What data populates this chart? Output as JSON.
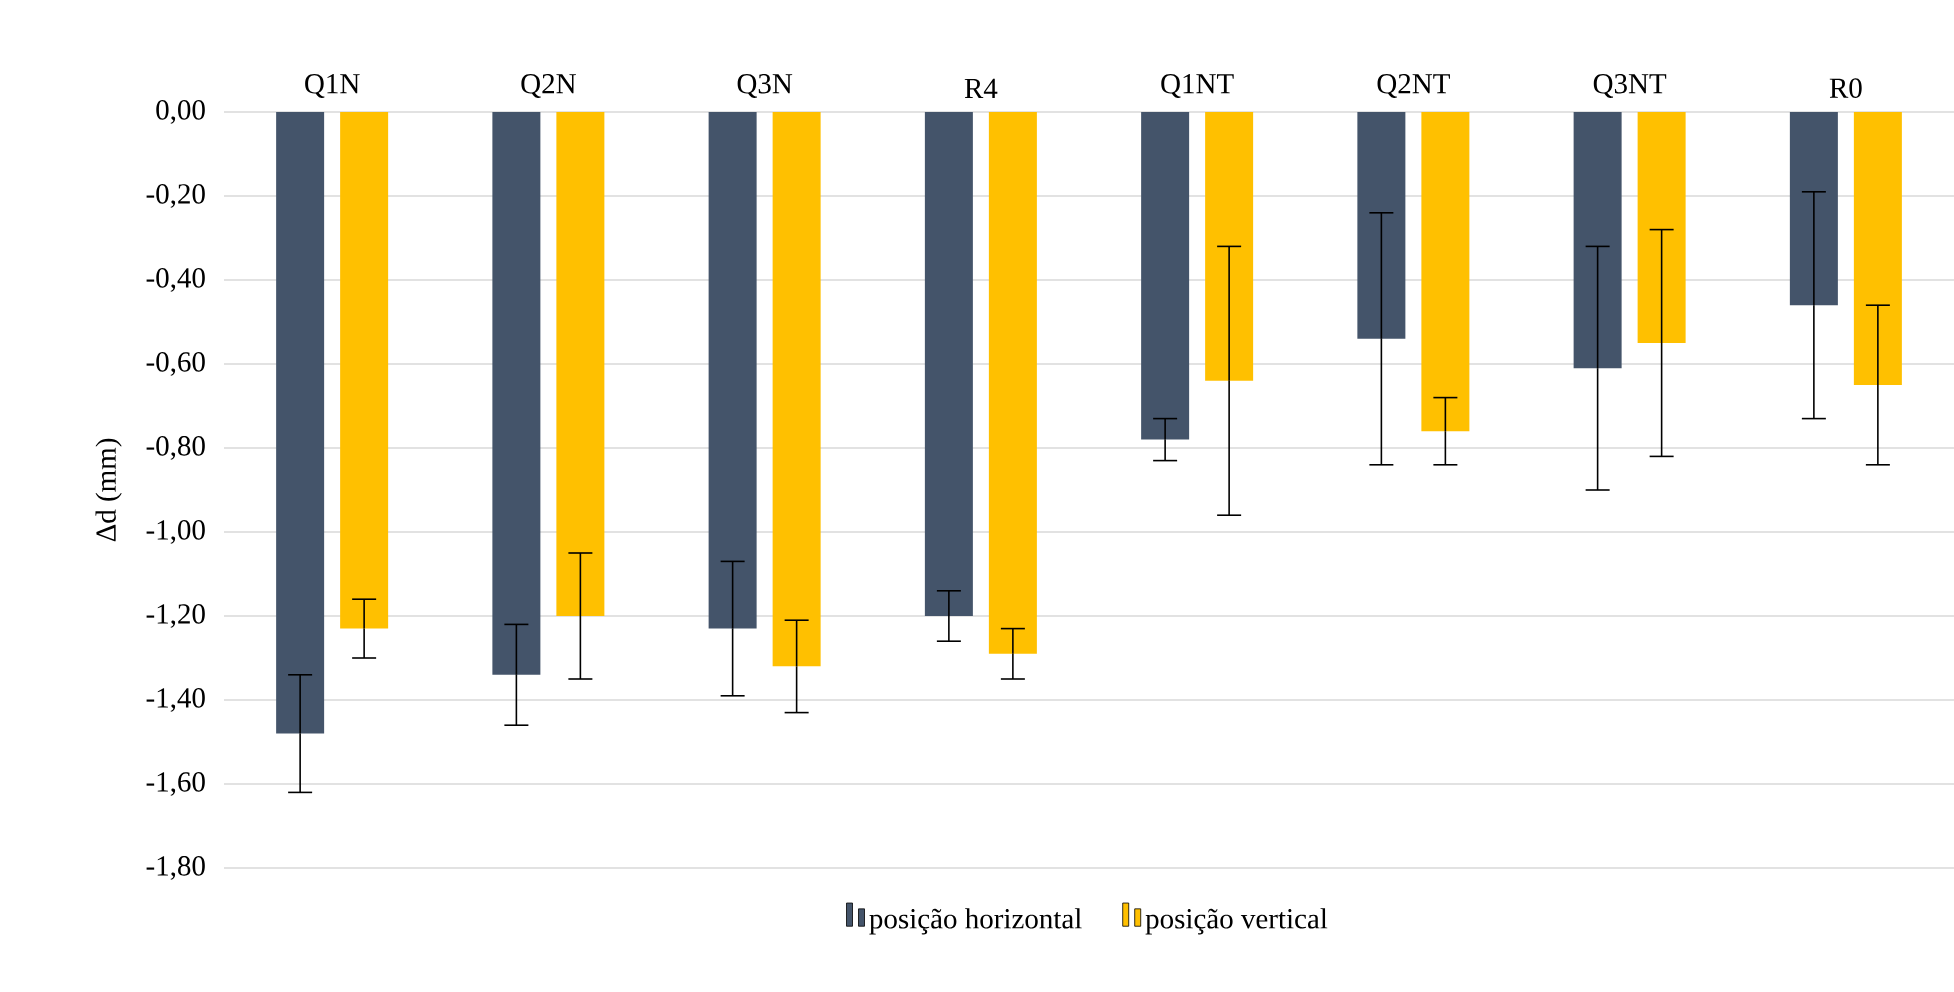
{
  "chart_data": {
    "type": "bar",
    "ylabel": "Δd (mm)",
    "categories": [
      "Q1N",
      "Q2N",
      "Q3N",
      "R4",
      "Q1NT",
      "Q2NT",
      "Q3NT",
      "R0"
    ],
    "series": [
      {
        "name": "posição horizontal",
        "color": "#44546a",
        "values": [
          -1.48,
          -1.34,
          -1.23,
          -1.2,
          -0.78,
          -0.54,
          -0.61,
          -0.46
        ],
        "errors": [
          0.14,
          0.12,
          0.16,
          0.06,
          0.05,
          0.3,
          0.29,
          0.27
        ]
      },
      {
        "name": "posição vertical",
        "color": "#ffc000",
        "values": [
          -1.23,
          -1.2,
          -1.32,
          -1.29,
          -0.64,
          -0.76,
          -0.55,
          -0.65
        ],
        "errors": [
          0.07,
          0.15,
          0.11,
          0.06,
          0.32,
          0.08,
          0.27,
          0.19
        ]
      }
    ],
    "ylim": [
      -1.8,
      0
    ],
    "yticks": [
      {
        "value": 0,
        "label": "0,00"
      },
      {
        "value": -0.2,
        "label": "-0,20"
      },
      {
        "value": -0.4,
        "label": "-0,40"
      },
      {
        "value": -0.6,
        "label": "-0,60"
      },
      {
        "value": -0.8,
        "label": "-0,80"
      },
      {
        "value": -1.0,
        "label": "-1,00"
      },
      {
        "value": -1.2,
        "label": "-1,20"
      },
      {
        "value": -1.4,
        "label": "-1,40"
      },
      {
        "value": -1.6,
        "label": "-1,60"
      },
      {
        "value": -1.8,
        "label": "-1,80"
      }
    ],
    "grid": "y",
    "legend": "bottom"
  }
}
